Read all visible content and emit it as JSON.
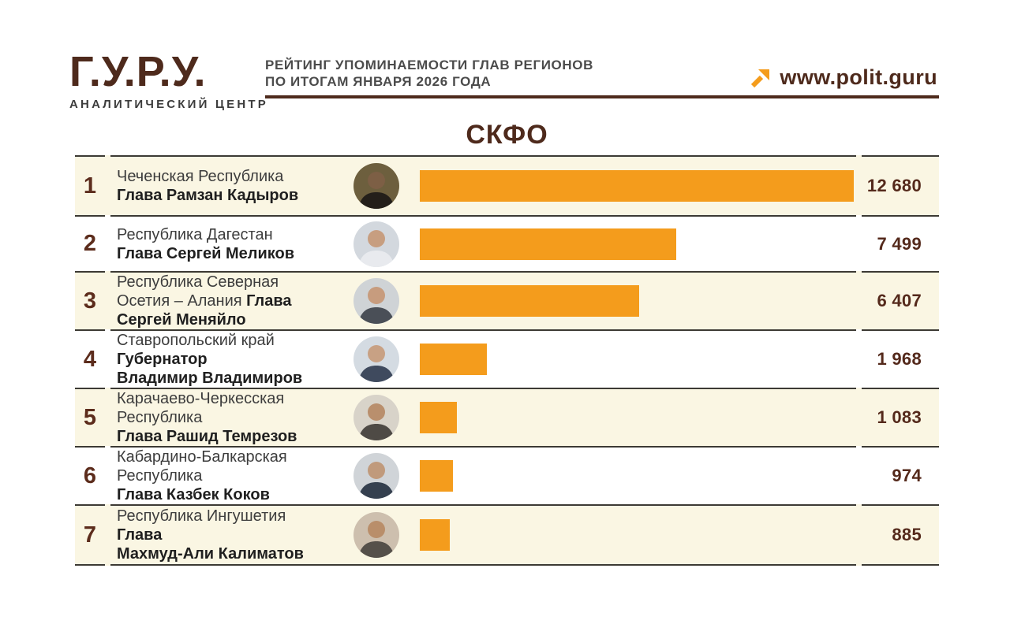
{
  "brand": {
    "logo_text": "Г.У.Р.У.",
    "tagline": "АНАЛИТИЧЕСКИЙ ЦЕНТР"
  },
  "header": {
    "title_line1": "РЕЙТИНГ УПОМИНАЕМОСТИ ГЛАВ РЕГИОНОВ",
    "title_line2": "ПО ИТОГАМ ЯНВАРЯ 2026 ГОДА",
    "website": "www.polit.guru"
  },
  "section_title": "СКФО",
  "colors": {
    "brand-brown": "#4e2a1c",
    "bar-orange": "#f49c1c",
    "row-cream": "#faf6e3",
    "line-dark": "#3c3a34"
  },
  "chart_data": {
    "type": "bar",
    "orientation": "horizontal",
    "title": "СКФО",
    "subtitle": "Рейтинг упоминаемости глав регионов по итогам января 2026 года",
    "value_axis_max": 12680,
    "max_value": 12680,
    "rows": [
      {
        "rank": "1",
        "region": "Чеченская Республика",
        "head": "\nГлава Рамзан Кадыров",
        "value": 12680,
        "value_label": "12 680"
      },
      {
        "rank": "2",
        "region": "Республика Дагестан",
        "head": "\nГлава Сергей Меликов",
        "value": 7499,
        "value_label": "7 499"
      },
      {
        "rank": "3",
        "region": "Республика Северная Осетия – Алания",
        "head": "Глава\nСергей Меняйло",
        "value": 6407,
        "value_label": "6 407"
      },
      {
        "rank": "4",
        "region": "Ставропольский край",
        "head": "\nГубернатор\nВладимир Владимиров",
        "value": 1968,
        "value_label": "1 968"
      },
      {
        "rank": "5",
        "region": "Карачаево-Черкесская Республика",
        "head": "\nГлава Рашид Темрезов",
        "value": 1083,
        "value_label": "1 083"
      },
      {
        "rank": "6",
        "region": "Кабардино-Балкарская Республика",
        "head": "\nГлава Казбек Коков",
        "value": 974,
        "value_label": "974"
      },
      {
        "rank": "7",
        "region": "Республика Ингушетия",
        "head": "\nГлава\nМахмуд-Али Калиматов",
        "value": 885,
        "value_label": "885"
      }
    ]
  }
}
